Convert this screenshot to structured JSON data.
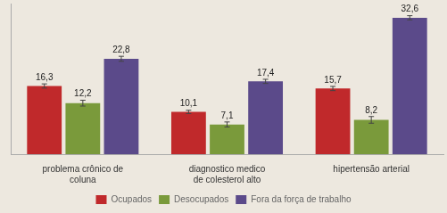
{
  "chart_data": {
    "type": "bar",
    "categories": [
      "problema crônico de coluna",
      "diagnostico medico de colesterol alto",
      "hipertensão arterial"
    ],
    "series": [
      {
        "name": "Ocupados",
        "color": "#c0292b",
        "values": [
          16.3,
          10.1,
          15.7
        ],
        "errors": [
          0.5,
          0.4,
          0.5
        ],
        "value_labels": [
          "16,3",
          "10,1",
          "15,7"
        ]
      },
      {
        "name": "Desocupados",
        "color": "#7a9a3b",
        "values": [
          12.2,
          7.1,
          8.2
        ],
        "errors": [
          0.7,
          0.6,
          0.8
        ],
        "value_labels": [
          "12,2",
          "7,1",
          "8,2"
        ]
      },
      {
        "name": "Fora da força de trabalho",
        "color": "#5b4a8a",
        "values": [
          22.8,
          17.4,
          32.6
        ],
        "errors": [
          0.6,
          0.5,
          0.5
        ],
        "value_labels": [
          "22,8",
          "17,4",
          "32,6"
        ]
      }
    ],
    "ylim": [
      0,
      36
    ],
    "data_labels": true,
    "tick_labels": "x",
    "grid": false,
    "legend": "bottom"
  }
}
